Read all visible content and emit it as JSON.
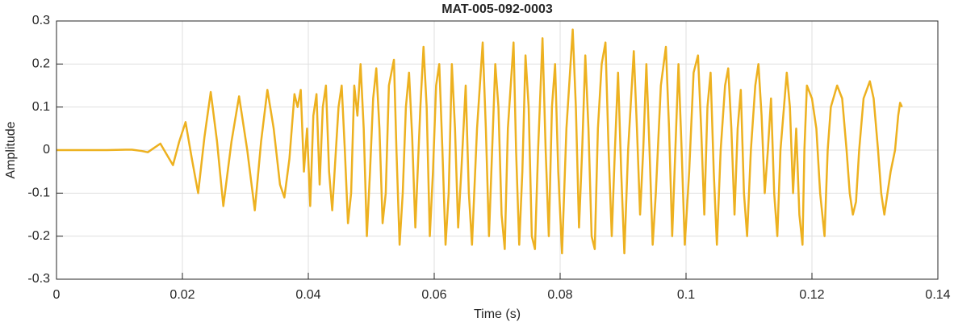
{
  "chart_data": {
    "type": "line",
    "title": "MAT-005-092-0003",
    "x_label": "Time (s)",
    "y_label": "Amplitude",
    "color": "#edb120",
    "grid": true,
    "xlim": [
      0,
      0.14
    ],
    "xticks": [
      0,
      0.02,
      0.04,
      0.06,
      0.08,
      0.1,
      0.12,
      0.14
    ],
    "ylim": [
      -0.3,
      0.3
    ],
    "yticks": [
      -0.3,
      -0.2,
      -0.1,
      0,
      0.1,
      0.2,
      0.3
    ],
    "x": [
      0,
      0.004,
      0.008,
      0.011,
      0.012,
      0.0135,
      0.0145,
      0.0155,
      0.0165,
      0.0175,
      0.0185,
      0.0195,
      0.0205,
      0.0215,
      0.0225,
      0.0235,
      0.0245,
      0.0255,
      0.0265,
      0.0278,
      0.029,
      0.0303,
      0.0315,
      0.0325,
      0.0335,
      0.0345,
      0.0355,
      0.0362,
      0.037,
      0.0378,
      0.0383,
      0.0388,
      0.0393,
      0.0398,
      0.0403,
      0.0408,
      0.0413,
      0.0418,
      0.0423,
      0.0428,
      0.0433,
      0.0438,
      0.0443,
      0.0448,
      0.0453,
      0.0458,
      0.0463,
      0.0468,
      0.0473,
      0.0478,
      0.0483,
      0.0488,
      0.0493,
      0.0498,
      0.0503,
      0.0508,
      0.0513,
      0.0518,
      0.0523,
      0.0528,
      0.0536,
      0.054,
      0.0545,
      0.055,
      0.0555,
      0.056,
      0.0565,
      0.057,
      0.0578,
      0.0583,
      0.0588,
      0.0593,
      0.0598,
      0.0603,
      0.0608,
      0.0613,
      0.0618,
      0.0623,
      0.0628,
      0.0633,
      0.0638,
      0.0643,
      0.065,
      0.0655,
      0.066,
      0.0668,
      0.0677,
      0.0682,
      0.0687,
      0.0692,
      0.0697,
      0.0702,
      0.0707,
      0.0712,
      0.0717,
      0.0726,
      0.073,
      0.0735,
      0.074,
      0.0745,
      0.075,
      0.0755,
      0.076,
      0.0765,
      0.0772,
      0.0777,
      0.0782,
      0.0787,
      0.0792,
      0.0797,
      0.0803,
      0.081,
      0.082,
      0.0825,
      0.083,
      0.0835,
      0.084,
      0.0845,
      0.085,
      0.0855,
      0.086,
      0.0866,
      0.0872,
      0.0877,
      0.0882,
      0.0887,
      0.0892,
      0.0897,
      0.0902,
      0.0908,
      0.0917,
      0.0922,
      0.0927,
      0.0932,
      0.0937,
      0.0942,
      0.0947,
      0.0952,
      0.096,
      0.0968,
      0.0973,
      0.0978,
      0.0983,
      0.0988,
      0.0993,
      0.0998,
      0.1005,
      0.1012,
      0.1019,
      0.1024,
      0.1029,
      0.1034,
      0.1039,
      0.1044,
      0.1049,
      0.1055,
      0.1062,
      0.1067,
      0.1072,
      0.1077,
      0.1082,
      0.1087,
      0.1092,
      0.1097,
      0.1103,
      0.111,
      0.1115,
      0.112,
      0.1125,
      0.113,
      0.1135,
      0.114,
      0.1145,
      0.115,
      0.116,
      0.1165,
      0.117,
      0.1175,
      0.118,
      0.1185,
      0.1188,
      0.1192,
      0.12,
      0.1207,
      0.1213,
      0.122,
      0.1225,
      0.123,
      0.124,
      0.1248,
      0.1255,
      0.126,
      0.1265,
      0.127,
      0.1275,
      0.1282,
      0.1292,
      0.1298,
      0.1305,
      0.131,
      0.1315,
      0.132,
      0.1325,
      0.1332,
      0.1337,
      0.134,
      0.1343
    ],
    "values": [
      0,
      0,
      0,
      0.001,
      0.001,
      -0.002,
      -0.005,
      0.005,
      0.015,
      -0.01,
      -0.035,
      0.02,
      0.065,
      -0.02,
      -0.1,
      0.03,
      0.135,
      0.02,
      -0.13,
      0.02,
      0.125,
      0,
      -0.14,
      0.02,
      0.14,
      0.05,
      -0.08,
      -0.11,
      -0.02,
      0.13,
      0.1,
      0.14,
      -0.05,
      0.05,
      -0.13,
      0.08,
      0.13,
      -0.08,
      0.1,
      0.15,
      -0.05,
      -0.14,
      -0.02,
      0.1,
      0.15,
      0,
      -0.17,
      -0.1,
      0.15,
      0.08,
      0.2,
      0.05,
      -0.2,
      -0.05,
      0.12,
      0.19,
      0.05,
      -0.17,
      -0.1,
      0.15,
      0.21,
      0,
      -0.22,
      -0.1,
      0.1,
      0.18,
      0.03,
      -0.18,
      0.1,
      0.24,
      0.1,
      -0.2,
      -0.05,
      0.15,
      0.2,
      0,
      -0.22,
      -0.1,
      0.2,
      0.05,
      -0.18,
      -0.05,
      0.15,
      -0.1,
      -0.22,
      0.05,
      0.25,
      0.05,
      -0.2,
      0,
      0.2,
      0.1,
      -0.15,
      -0.23,
      0.05,
      0.25,
      0,
      -0.22,
      -0.05,
      0.22,
      0.1,
      -0.2,
      -0.23,
      0,
      0.26,
      0,
      -0.2,
      0.1,
      0.2,
      -0.05,
      -0.24,
      0.05,
      0.28,
      0.1,
      -0.18,
      0,
      0.22,
      0.05,
      -0.2,
      -0.23,
      0.05,
      0.2,
      0.25,
      0,
      -0.2,
      0,
      0.18,
      -0.05,
      -0.24,
      0,
      0.23,
      0.05,
      -0.15,
      0,
      0.2,
      0,
      -0.22,
      -0.1,
      0.15,
      0.24,
      0.05,
      -0.2,
      0,
      0.2,
      0,
      -0.22,
      -0.05,
      0.18,
      0.22,
      0.05,
      -0.15,
      0.1,
      0.18,
      -0.05,
      -0.22,
      0,
      0.15,
      0.19,
      0.05,
      -0.15,
      0.05,
      0.14,
      -0.1,
      -0.2,
      0,
      0.15,
      0.2,
      0.08,
      -0.1,
      0,
      0.12,
      -0.1,
      -0.2,
      0,
      0.18,
      0.1,
      -0.1,
      0.05,
      -0.15,
      -0.22,
      0,
      0.15,
      0.12,
      0.05,
      -0.1,
      -0.2,
      0,
      0.1,
      0.15,
      0.12,
      0,
      -0.1,
      -0.15,
      -0.12,
      0,
      0.12,
      0.16,
      0.12,
      0,
      -0.1,
      -0.15,
      -0.1,
      -0.05,
      0,
      0.08,
      0.11,
      0.1
    ]
  }
}
